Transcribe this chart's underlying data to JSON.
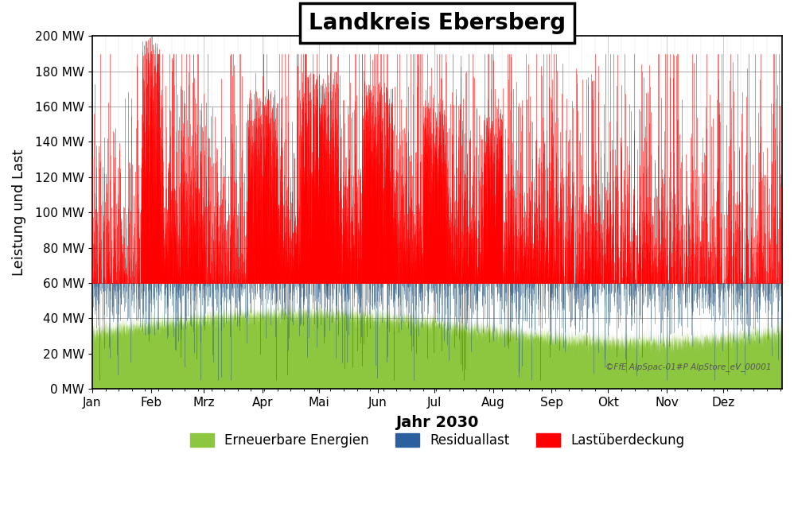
{
  "title": "Landkreis Ebersberg",
  "xlabel": "Jahr 2030",
  "ylabel": "Leistung und Last",
  "ylim": [
    0,
    200
  ],
  "yticks": [
    0,
    20,
    40,
    60,
    80,
    100,
    120,
    140,
    160,
    180,
    200
  ],
  "ytick_labels": [
    "0 MW",
    "20 MW",
    "40 MW",
    "60 MW",
    "80 MW",
    "100 MW",
    "120 MW",
    "140 MW",
    "160 MW",
    "180 MW",
    "200 MW"
  ],
  "month_labels": [
    "Jan",
    "Feb",
    "Mrz",
    "Apr",
    "Mai",
    "Jun",
    "Jul",
    "Aug",
    "Sep",
    "Okt",
    "Nov",
    "Dez"
  ],
  "month_day_starts": [
    0,
    31,
    59,
    90,
    120,
    151,
    181,
    212,
    243,
    273,
    304,
    334
  ],
  "color_green": "#8DC63F",
  "color_blue": "#1F4E79",
  "color_red": "#FF0000",
  "legend_labels": [
    "Erneuerbare Energien",
    "Residuallast",
    "Lastüberdeckung"
  ],
  "watermark": "©FfE AlpSpac-01#P AlpStore_eV_00001",
  "n_hours": 8760,
  "green_base": 35,
  "load_line": 60,
  "background_color": "#ffffff"
}
